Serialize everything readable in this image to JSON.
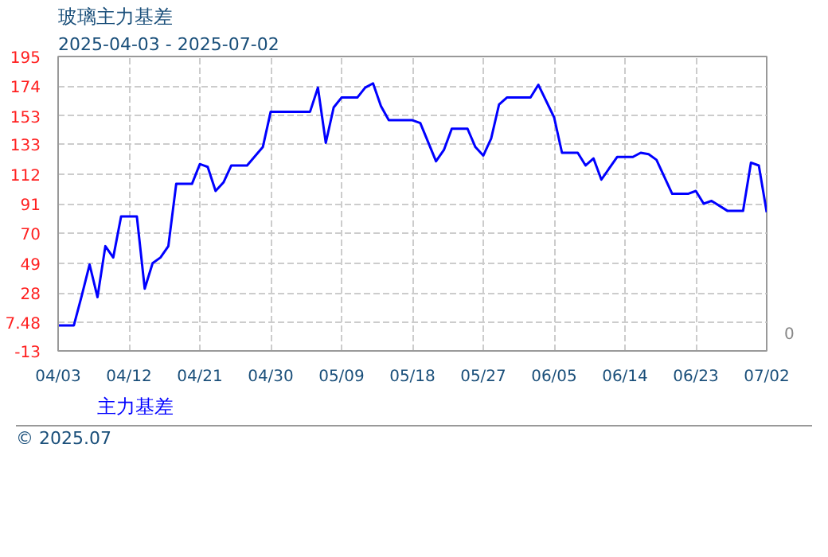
{
  "chart_data": {
    "type": "line",
    "title": "玻璃主力基差",
    "subtitle": "2025-04-03 - 2025-07-02",
    "x": [
      "2025-04-03",
      "2025-04-05",
      "2025-04-06",
      "2025-04-07",
      "2025-04-08",
      "2025-04-09",
      "2025-04-10",
      "2025-04-11",
      "2025-04-13",
      "2025-04-14",
      "2025-04-15",
      "2025-04-16",
      "2025-04-17",
      "2025-04-18",
      "2025-04-20",
      "2025-04-21",
      "2025-04-22",
      "2025-04-23",
      "2025-04-24",
      "2025-04-25",
      "2025-04-27",
      "2025-04-29",
      "2025-04-30",
      "2025-05-05",
      "2025-05-06",
      "2025-05-07",
      "2025-05-08",
      "2025-05-09",
      "2025-05-11",
      "2025-05-12",
      "2025-05-13",
      "2025-05-14",
      "2025-05-15",
      "2025-05-18",
      "2025-05-19",
      "2025-05-21",
      "2025-05-22",
      "2025-05-23",
      "2025-05-25",
      "2025-05-26",
      "2025-05-27",
      "2025-05-28",
      "2025-05-29",
      "2025-05-30",
      "2025-06-02",
      "2025-06-03",
      "2025-06-05",
      "2025-06-06",
      "2025-06-08",
      "2025-06-09",
      "2025-06-10",
      "2025-06-11",
      "2025-06-13",
      "2025-06-15",
      "2025-06-16",
      "2025-06-17",
      "2025-06-18",
      "2025-06-20",
      "2025-06-22",
      "2025-06-23",
      "2025-06-24",
      "2025-06-25",
      "2025-06-27",
      "2025-06-29",
      "2025-06-30",
      "2025-07-01",
      "2025-07-02"
    ],
    "series": [
      {
        "name": "主力基差",
        "color": "#0000ff",
        "values": [
          5,
          5,
          26,
          48,
          25,
          61,
          53,
          82,
          82,
          31,
          49,
          53,
          61,
          105,
          105,
          119,
          117,
          100,
          106,
          118,
          118,
          131,
          156,
          156,
          173,
          134,
          159,
          166,
          166,
          173,
          176,
          160,
          150,
          150,
          148,
          121,
          129,
          144,
          144,
          131,
          125,
          137,
          161,
          166,
          166,
          175,
          152,
          127,
          127,
          118,
          123,
          108,
          124,
          124,
          127,
          126,
          122,
          98,
          98,
          100,
          91,
          93,
          86,
          86,
          120,
          118,
          85
        ]
      }
    ],
    "xlim": [
      "2025-04-03",
      "2025-07-02"
    ],
    "xticks": [
      {
        "value": "2025-04-03",
        "label": "04/03"
      },
      {
        "value": "2025-04-12",
        "label": "04/12"
      },
      {
        "value": "2025-04-21",
        "label": "04/21"
      },
      {
        "value": "2025-04-30",
        "label": "04/30"
      },
      {
        "value": "2025-05-09",
        "label": "05/09"
      },
      {
        "value": "2025-05-18",
        "label": "05/18"
      },
      {
        "value": "2025-05-27",
        "label": "05/27"
      },
      {
        "value": "2025-06-05",
        "label": "06/05"
      },
      {
        "value": "2025-06-14",
        "label": "06/14"
      },
      {
        "value": "2025-06-23",
        "label": "06/23"
      },
      {
        "value": "2025-07-02",
        "label": "07/02"
      }
    ],
    "ylim": [
      -13,
      195
    ],
    "yticks": [
      -13,
      7.48,
      28,
      49,
      70,
      91,
      112,
      133,
      153,
      174,
      195
    ],
    "grid": true,
    "legend": "bottom left",
    "line_style": "solid",
    "annotations": [
      "0",
      "© 2025.07"
    ]
  }
}
